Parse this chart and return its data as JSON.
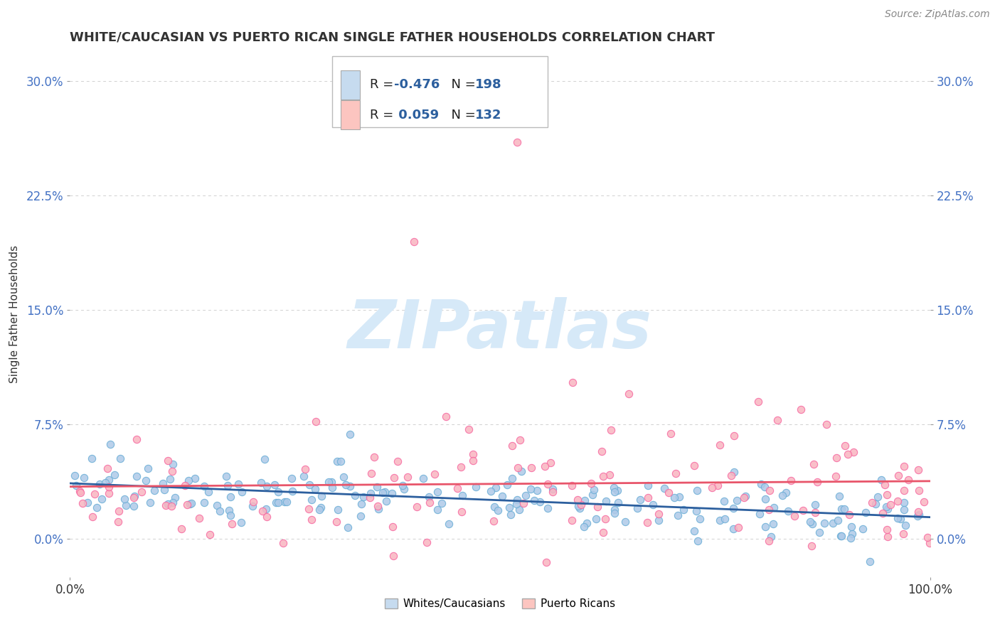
{
  "title": "WHITE/CAUCASIAN VS PUERTO RICAN SINGLE FATHER HOUSEHOLDS CORRELATION CHART",
  "source": "Source: ZipAtlas.com",
  "ylabel": "Single Father Households",
  "xlim": [
    0,
    100
  ],
  "ylim": [
    -2.5,
    32
  ],
  "yticks": [
    0,
    7.5,
    15,
    22.5,
    30
  ],
  "yticklabels": [
    "0.0%",
    "7.5%",
    "15.0%",
    "22.5%",
    "30.0%"
  ],
  "xticks": [
    0,
    100
  ],
  "xticklabels": [
    "0.0%",
    "100.0%"
  ],
  "blue_scatter_color": "#aec9e8",
  "blue_edge_color": "#6baed6",
  "pink_scatter_color": "#f9b4c0",
  "pink_edge_color": "#f768a1",
  "blue_line_color": "#2c5f9e",
  "pink_line_color": "#e8556a",
  "tick_color": "#4472c4",
  "watermark_color": "#d6e9f8",
  "grid_color": "#cccccc",
  "background_color": "#ffffff",
  "legend_box_color": "#ffffff",
  "legend_border_color": "#cccccc",
  "blue_fill": "#c6dbef",
  "pink_fill": "#fcc5c0",
  "seed": 42,
  "n_blue": 198,
  "n_pink": 132,
  "blue_R": -0.476,
  "pink_R": 0.059
}
